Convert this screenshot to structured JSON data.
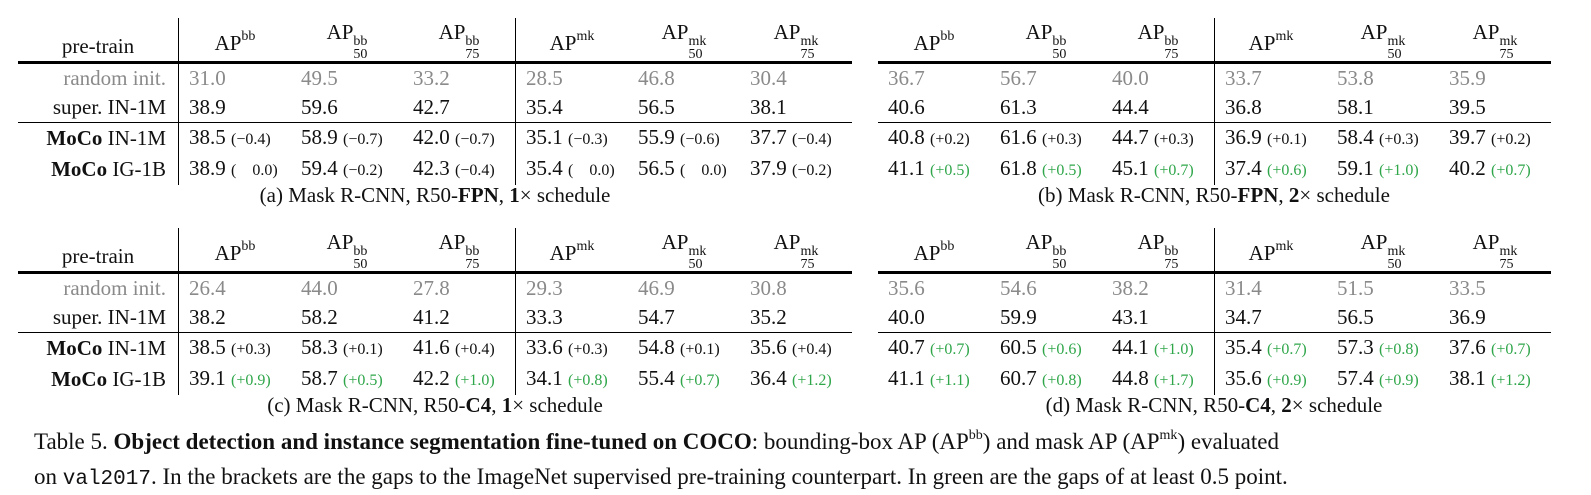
{
  "header": {
    "pretrain": "pre-train",
    "ap": "AP",
    "bb": "bb",
    "mk": "mk",
    "s50": "50",
    "s75": "75"
  },
  "panels": [
    {
      "caption_prefix": "(a) Mask R-CNN, R50-",
      "caption_bold1": "FPN",
      "caption_comma": ", ",
      "caption_bold2": "1",
      "caption_suffix": "× schedule",
      "rows": [
        {
          "method": "",
          "dataset": "random init.",
          "style": "gray",
          "cells": [
            [
              "31.0",
              "",
              "n"
            ],
            [
              "49.5",
              "",
              "n"
            ],
            [
              "33.2",
              "",
              "n"
            ],
            [
              "28.5",
              "",
              "n"
            ],
            [
              "46.8",
              "",
              "n"
            ],
            [
              "30.4",
              "",
              "n"
            ]
          ]
        },
        {
          "method": "",
          "dataset": "super.  IN-1M",
          "style": "",
          "cells": [
            [
              "38.9",
              "",
              "n"
            ],
            [
              "59.6",
              "",
              "n"
            ],
            [
              "42.7",
              "",
              "n"
            ],
            [
              "35.4",
              "",
              "n"
            ],
            [
              "56.5",
              "",
              "n"
            ],
            [
              "38.1",
              "",
              "n"
            ]
          ]
        },
        {
          "method": "MoCo",
          "dataset": "IN-1M",
          "style": "",
          "cells": [
            [
              "38.5",
              "(−0.4)",
              "n"
            ],
            [
              "58.9",
              "(−0.7)",
              "n"
            ],
            [
              "42.0",
              "(−0.7)",
              "n"
            ],
            [
              "35.1",
              "(−0.3)",
              "n"
            ],
            [
              "55.9",
              "(−0.6)",
              "n"
            ],
            [
              "37.7",
              "(−0.4)",
              "n"
            ]
          ]
        },
        {
          "method": "MoCo",
          "dataset": "IG-1B",
          "style": "",
          "cells": [
            [
              "38.9",
              "(    0.0)",
              "n"
            ],
            [
              "59.4",
              "(−0.2)",
              "n"
            ],
            [
              "42.3",
              "(−0.4)",
              "n"
            ],
            [
              "35.4",
              "(    0.0)",
              "n"
            ],
            [
              "56.5",
              "(    0.0)",
              "n"
            ],
            [
              "37.9",
              "(−0.2)",
              "n"
            ]
          ]
        }
      ]
    },
    {
      "caption_prefix": "(b) Mask R-CNN, R50-",
      "caption_bold1": "FPN",
      "caption_comma": ", ",
      "caption_bold2": "2",
      "caption_suffix": "× schedule",
      "rows": [
        {
          "method": "",
          "dataset": "",
          "style": "gray",
          "cells": [
            [
              "36.7",
              "",
              "n"
            ],
            [
              "56.7",
              "",
              "n"
            ],
            [
              "40.0",
              "",
              "n"
            ],
            [
              "33.7",
              "",
              "n"
            ],
            [
              "53.8",
              "",
              "n"
            ],
            [
              "35.9",
              "",
              "n"
            ]
          ]
        },
        {
          "method": "",
          "dataset": "",
          "style": "",
          "cells": [
            [
              "40.6",
              "",
              "n"
            ],
            [
              "61.3",
              "",
              "n"
            ],
            [
              "44.4",
              "",
              "n"
            ],
            [
              "36.8",
              "",
              "n"
            ],
            [
              "58.1",
              "",
              "n"
            ],
            [
              "39.5",
              "",
              "n"
            ]
          ]
        },
        {
          "method": "",
          "dataset": "",
          "style": "",
          "cells": [
            [
              "40.8",
              "(+0.2)",
              "n"
            ],
            [
              "61.6",
              "(+0.3)",
              "n"
            ],
            [
              "44.7",
              "(+0.3)",
              "n"
            ],
            [
              "36.9",
              "(+0.1)",
              "n"
            ],
            [
              "58.4",
              "(+0.3)",
              "n"
            ],
            [
              "39.7",
              "(+0.2)",
              "n"
            ]
          ]
        },
        {
          "method": "",
          "dataset": "",
          "style": "",
          "cells": [
            [
              "41.1",
              "(+0.5)",
              "g"
            ],
            [
              "61.8",
              "(+0.5)",
              "g"
            ],
            [
              "45.1",
              "(+0.7)",
              "g"
            ],
            [
              "37.4",
              "(+0.6)",
              "g"
            ],
            [
              "59.1",
              "(+1.0)",
              "g"
            ],
            [
              "40.2",
              "(+0.7)",
              "g"
            ]
          ]
        }
      ]
    },
    {
      "caption_prefix": "(c) Mask R-CNN, R50-",
      "caption_bold1": "C4",
      "caption_comma": ", ",
      "caption_bold2": "1",
      "caption_suffix": "× schedule",
      "rows": [
        {
          "method": "",
          "dataset": "random init.",
          "style": "gray",
          "cells": [
            [
              "26.4",
              "",
              "n"
            ],
            [
              "44.0",
              "",
              "n"
            ],
            [
              "27.8",
              "",
              "n"
            ],
            [
              "29.3",
              "",
              "n"
            ],
            [
              "46.9",
              "",
              "n"
            ],
            [
              "30.8",
              "",
              "n"
            ]
          ]
        },
        {
          "method": "",
          "dataset": "super.  IN-1M",
          "style": "",
          "cells": [
            [
              "38.2",
              "",
              "n"
            ],
            [
              "58.2",
              "",
              "n"
            ],
            [
              "41.2",
              "",
              "n"
            ],
            [
              "33.3",
              "",
              "n"
            ],
            [
              "54.7",
              "",
              "n"
            ],
            [
              "35.2",
              "",
              "n"
            ]
          ]
        },
        {
          "method": "MoCo",
          "dataset": "IN-1M",
          "style": "",
          "cells": [
            [
              "38.5",
              "(+0.3)",
              "n"
            ],
            [
              "58.3",
              "(+0.1)",
              "n"
            ],
            [
              "41.6",
              "(+0.4)",
              "n"
            ],
            [
              "33.6",
              "(+0.3)",
              "n"
            ],
            [
              "54.8",
              "(+0.1)",
              "n"
            ],
            [
              "35.6",
              "(+0.4)",
              "n"
            ]
          ]
        },
        {
          "method": "MoCo",
          "dataset": "IG-1B",
          "style": "",
          "cells": [
            [
              "39.1",
              "(+0.9)",
              "g"
            ],
            [
              "58.7",
              "(+0.5)",
              "g"
            ],
            [
              "42.2",
              "(+1.0)",
              "g"
            ],
            [
              "34.1",
              "(+0.8)",
              "g"
            ],
            [
              "55.4",
              "(+0.7)",
              "g"
            ],
            [
              "36.4",
              "(+1.2)",
              "g"
            ]
          ]
        }
      ]
    },
    {
      "caption_prefix": "(d) Mask R-CNN, R50-",
      "caption_bold1": "C4",
      "caption_comma": ", ",
      "caption_bold2": "2",
      "caption_suffix": "× schedule",
      "rows": [
        {
          "method": "",
          "dataset": "",
          "style": "gray",
          "cells": [
            [
              "35.6",
              "",
              "n"
            ],
            [
              "54.6",
              "",
              "n"
            ],
            [
              "38.2",
              "",
              "n"
            ],
            [
              "31.4",
              "",
              "n"
            ],
            [
              "51.5",
              "",
              "n"
            ],
            [
              "33.5",
              "",
              "n"
            ]
          ]
        },
        {
          "method": "",
          "dataset": "",
          "style": "",
          "cells": [
            [
              "40.0",
              "",
              "n"
            ],
            [
              "59.9",
              "",
              "n"
            ],
            [
              "43.1",
              "",
              "n"
            ],
            [
              "34.7",
              "",
              "n"
            ],
            [
              "56.5",
              "",
              "n"
            ],
            [
              "36.9",
              "",
              "n"
            ]
          ]
        },
        {
          "method": "",
          "dataset": "",
          "style": "",
          "cells": [
            [
              "40.7",
              "(+0.7)",
              "g"
            ],
            [
              "60.5",
              "(+0.6)",
              "g"
            ],
            [
              "44.1",
              "(+1.0)",
              "g"
            ],
            [
              "35.4",
              "(+0.7)",
              "g"
            ],
            [
              "57.3",
              "(+0.8)",
              "g"
            ],
            [
              "37.6",
              "(+0.7)",
              "g"
            ]
          ]
        },
        {
          "method": "",
          "dataset": "",
          "style": "",
          "cells": [
            [
              "41.1",
              "(+1.1)",
              "g"
            ],
            [
              "60.7",
              "(+0.8)",
              "g"
            ],
            [
              "44.8",
              "(+1.7)",
              "g"
            ],
            [
              "35.6",
              "(+0.9)",
              "g"
            ],
            [
              "57.4",
              "(+0.9)",
              "g"
            ],
            [
              "38.1",
              "(+1.2)",
              "g"
            ]
          ]
        }
      ]
    }
  ],
  "caption": {
    "label": "Table 5.",
    "title": "Object detection and instance segmentation fine-tuned on COCO",
    "t1": ": bounding-box AP (AP",
    "t2": ") and mask AP (AP",
    "t3": ") evaluated",
    "t4": "on ",
    "code": "val2017",
    "t5": ". In the brackets are the gaps to the ImageNet supervised pre-training counterpart. In green are the gaps of at least 0.5 point."
  }
}
